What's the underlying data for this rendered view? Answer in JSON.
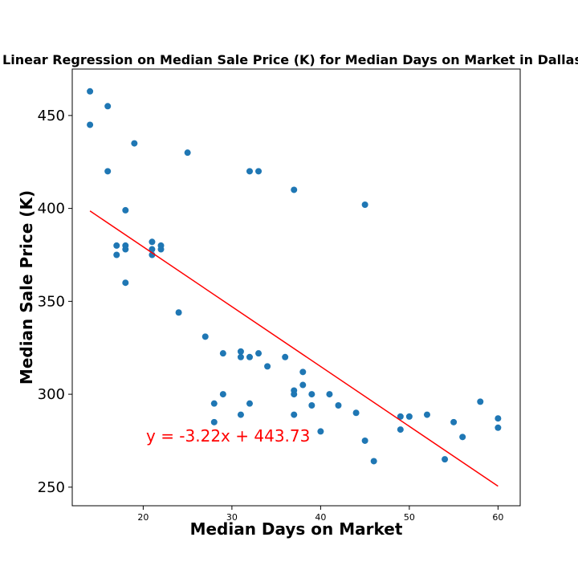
{
  "chart_data": {
    "type": "scatter",
    "title": "Linear Regression on Median Sale Price (K) for Median Days on Market in Dallas",
    "xlabel": "Median Days on Market",
    "ylabel": "Median Sale Price (K)",
    "xlim": [
      12,
      62.5
    ],
    "ylim": [
      240,
      475
    ],
    "xticks": [
      20,
      30,
      40,
      50,
      60
    ],
    "yticks": [
      250,
      300,
      350,
      400,
      450
    ],
    "grid": false,
    "point_color": "#1f77b4",
    "line_color": "#ff0000",
    "equation_text": "y = -3.22x + 443.73",
    "regression": {
      "slope": -3.22,
      "intercept": 443.73,
      "x_range": [
        14,
        60
      ]
    },
    "points": [
      {
        "x": 14,
        "y": 463
      },
      {
        "x": 14,
        "y": 445
      },
      {
        "x": 16,
        "y": 455
      },
      {
        "x": 16,
        "y": 420
      },
      {
        "x": 19,
        "y": 435
      },
      {
        "x": 25,
        "y": 430
      },
      {
        "x": 18,
        "y": 399
      },
      {
        "x": 17,
        "y": 380
      },
      {
        "x": 17,
        "y": 375
      },
      {
        "x": 18,
        "y": 380
      },
      {
        "x": 18,
        "y": 378
      },
      {
        "x": 18,
        "y": 360
      },
      {
        "x": 21,
        "y": 382
      },
      {
        "x": 21,
        "y": 378
      },
      {
        "x": 21,
        "y": 375
      },
      {
        "x": 22,
        "y": 380
      },
      {
        "x": 22,
        "y": 378
      },
      {
        "x": 24,
        "y": 344
      },
      {
        "x": 27,
        "y": 331
      },
      {
        "x": 32,
        "y": 420
      },
      {
        "x": 33,
        "y": 420
      },
      {
        "x": 37,
        "y": 410
      },
      {
        "x": 45,
        "y": 402
      },
      {
        "x": 29,
        "y": 322
      },
      {
        "x": 31,
        "y": 323
      },
      {
        "x": 31,
        "y": 320
      },
      {
        "x": 32,
        "y": 320
      },
      {
        "x": 33,
        "y": 322
      },
      {
        "x": 34,
        "y": 315
      },
      {
        "x": 36,
        "y": 320
      },
      {
        "x": 38,
        "y": 312
      },
      {
        "x": 38,
        "y": 305
      },
      {
        "x": 37,
        "y": 302
      },
      {
        "x": 37,
        "y": 300
      },
      {
        "x": 39,
        "y": 300
      },
      {
        "x": 41,
        "y": 300
      },
      {
        "x": 39,
        "y": 294
      },
      {
        "x": 42,
        "y": 294
      },
      {
        "x": 28,
        "y": 295
      },
      {
        "x": 29,
        "y": 300
      },
      {
        "x": 32,
        "y": 295
      },
      {
        "x": 28,
        "y": 285
      },
      {
        "x": 31,
        "y": 289
      },
      {
        "x": 37,
        "y": 289
      },
      {
        "x": 40,
        "y": 280
      },
      {
        "x": 44,
        "y": 290
      },
      {
        "x": 45,
        "y": 275
      },
      {
        "x": 46,
        "y": 264
      },
      {
        "x": 49,
        "y": 288
      },
      {
        "x": 49,
        "y": 281
      },
      {
        "x": 50,
        "y": 288
      },
      {
        "x": 52,
        "y": 289
      },
      {
        "x": 54,
        "y": 265
      },
      {
        "x": 55,
        "y": 285
      },
      {
        "x": 56,
        "y": 277
      },
      {
        "x": 58,
        "y": 296
      },
      {
        "x": 60,
        "y": 287
      },
      {
        "x": 60,
        "y": 282
      }
    ]
  }
}
